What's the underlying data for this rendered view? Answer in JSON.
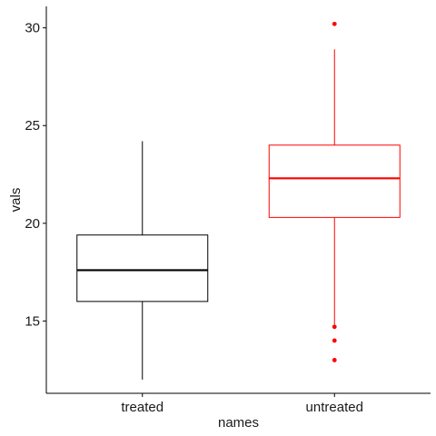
{
  "chart_data": {
    "type": "box",
    "xlabel": "names",
    "ylabel": "vals",
    "ylim": [
      11.3,
      31.1
    ],
    "yticks": [
      15,
      20,
      25,
      30
    ],
    "grid": false,
    "legend": "none",
    "categories": [
      "treated",
      "untreated"
    ],
    "series": [
      {
        "category": "treated",
        "color": "#000000",
        "whisker_low": 12.0,
        "q1": 16.0,
        "median": 17.6,
        "q3": 19.4,
        "whisker_high": 24.2,
        "outliers": []
      },
      {
        "category": "untreated",
        "color": "#ff0000",
        "whisker_low": 14.7,
        "q1": 20.3,
        "median": 22.3,
        "q3": 24.0,
        "whisker_high": 28.9,
        "outliers": [
          30.2,
          14.7,
          14.0,
          13.0
        ]
      }
    ]
  }
}
